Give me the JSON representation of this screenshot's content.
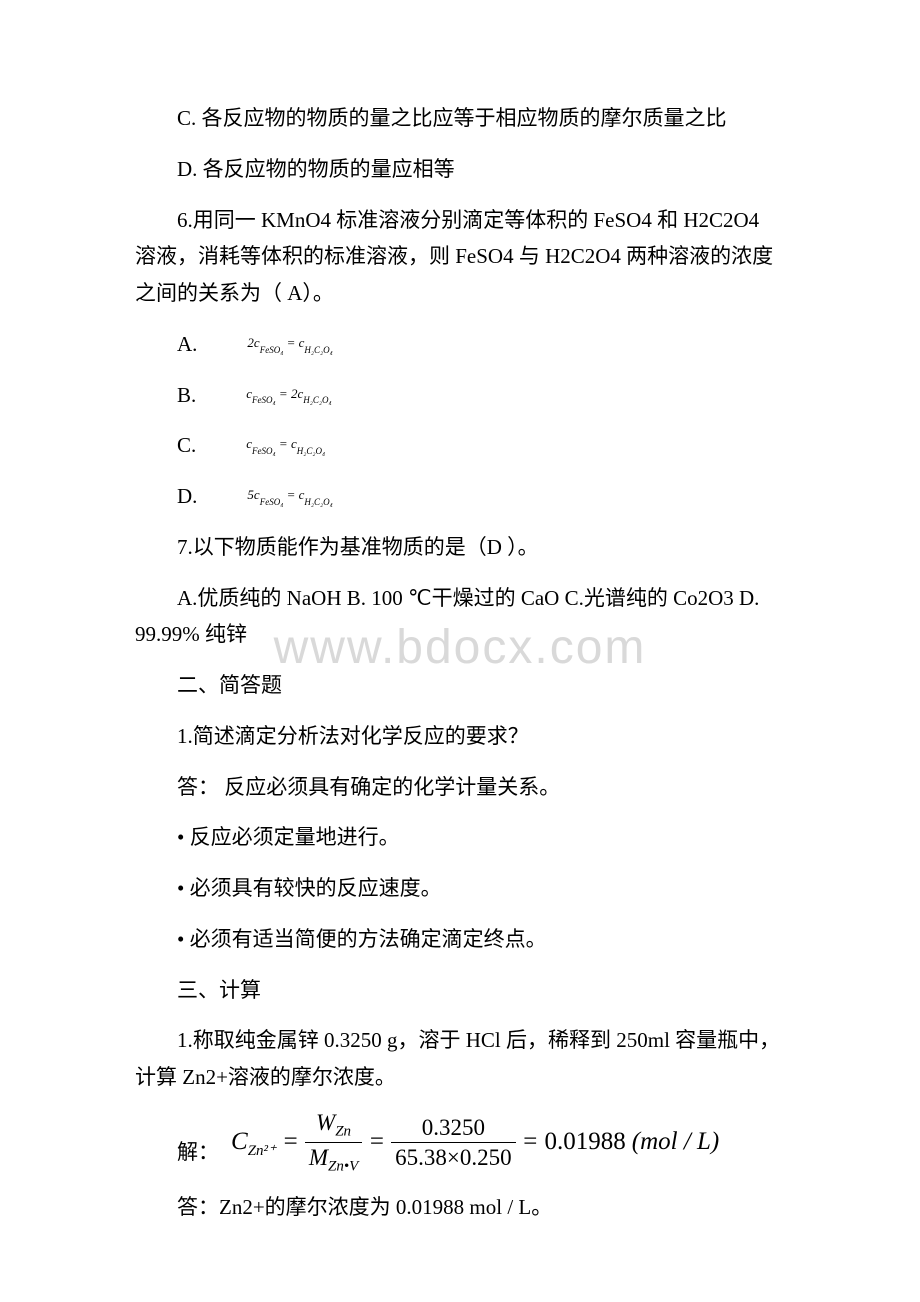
{
  "lines": {
    "q5c": "C. 各反应物的物质的量之比应等于相应物质的摩尔质量之比",
    "q5d": "D. 各反应物的物质的量应相等",
    "q6": "6.用同一 KMnO4 标准溶液分别滴定等体积的 FeSO4 和 H2C2O4 溶液，消耗等体积的标准溶液，则 FeSO4 与 H2C2O4 两种溶液的浓度之间的关系为（ A）。",
    "q6a_label": "A.",
    "q6b_label": " B.",
    "q6c_label": "C.",
    "q6d_label": " D.",
    "q7": "7.以下物质能作为基准物质的是（D ）。",
    "q7opts": "A.优质纯的 NaOH B. 100 ℃干燥过的 CaO  C.光谱纯的 Co2O3 D. 99.99% 纯锌",
    "sec2": "二、简答题",
    "q2_1": "1.简述滴定分析法对化学反应的要求？",
    "ans_prefix": "答：  反应必须具有确定的化学计量关系。",
    "b1": "• 反应必须定量地进行。",
    "b2": "• 必须具有较快的反应速度。",
    "b3": "• 必须有适当简便的方法确定滴定终点。",
    "sec3": "三、计算",
    "q3_1": "1.称取纯金属锌 0.3250 g，溶于 HCl 后，稀释到 250ml 容量瓶中，计算 Zn2+溶液的摩尔浓度。",
    "sol_label": "解：",
    "final_ans": "答：Zn2+的摩尔浓度为 0.01988 mol / L。"
  },
  "formulas": {
    "q6a": {
      "lhs_coef": "2",
      "lhs": "c",
      "lhs_sub": "FeSO₄",
      "rhs": "c",
      "rhs_sub": "H₂C₂O₄"
    },
    "q6b": {
      "lhs": "c",
      "lhs_sub": "FeSO₄",
      "rhs_coef": "2",
      "rhs": "c",
      "rhs_sub": "H₂C₂O₄"
    },
    "q6c": {
      "lhs": "c",
      "lhs_sub": "FeSO₄",
      "rhs": "c",
      "rhs_sub": "H₂C₂O₄"
    },
    "q6d": {
      "lhs_coef": "5",
      "lhs": "c",
      "lhs_sub": "FeSO₄",
      "rhs": "c",
      "rhs_sub": "H₂C₂O₄"
    },
    "big": {
      "C": "C",
      "C_sub": "Zn²⁺",
      "eq": "=",
      "W": "W",
      "W_sub": "Zn",
      "M": "M",
      "M_sub": "Zn•V",
      "num2": "0.3250",
      "den2a": "65.38",
      "times": "×",
      "den2b": "0.250",
      "result": "0.01988",
      "unit": "(mol / L)"
    }
  },
  "watermark": "www.bdocx.com",
  "style": {
    "body_font_size": 21,
    "body_color": "#000000",
    "watermark_color": "#d9d9d9",
    "watermark_font_size": 48,
    "formula_small_size": 13,
    "big_formula_size": 25,
    "background": "#ffffff"
  }
}
